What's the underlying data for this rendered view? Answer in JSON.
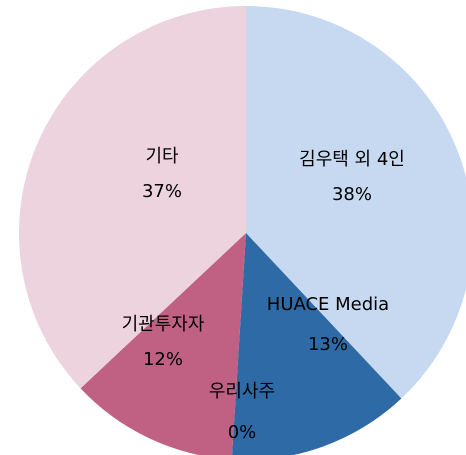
{
  "chart_data": {
    "type": "pie",
    "categories": [
      "김우택 외 4인",
      "HUACE Media",
      "우리사주",
      "기관투자자",
      "기타"
    ],
    "values": [
      38,
      13,
      0,
      12,
      37
    ],
    "value_labels": [
      "38%",
      "13%",
      "0%",
      "12%",
      "37%"
    ],
    "colors": [
      "#c6d9f0",
      "#2e6aa6",
      "#7f7f7f",
      "#c06083",
      "#ecd3dd"
    ]
  }
}
